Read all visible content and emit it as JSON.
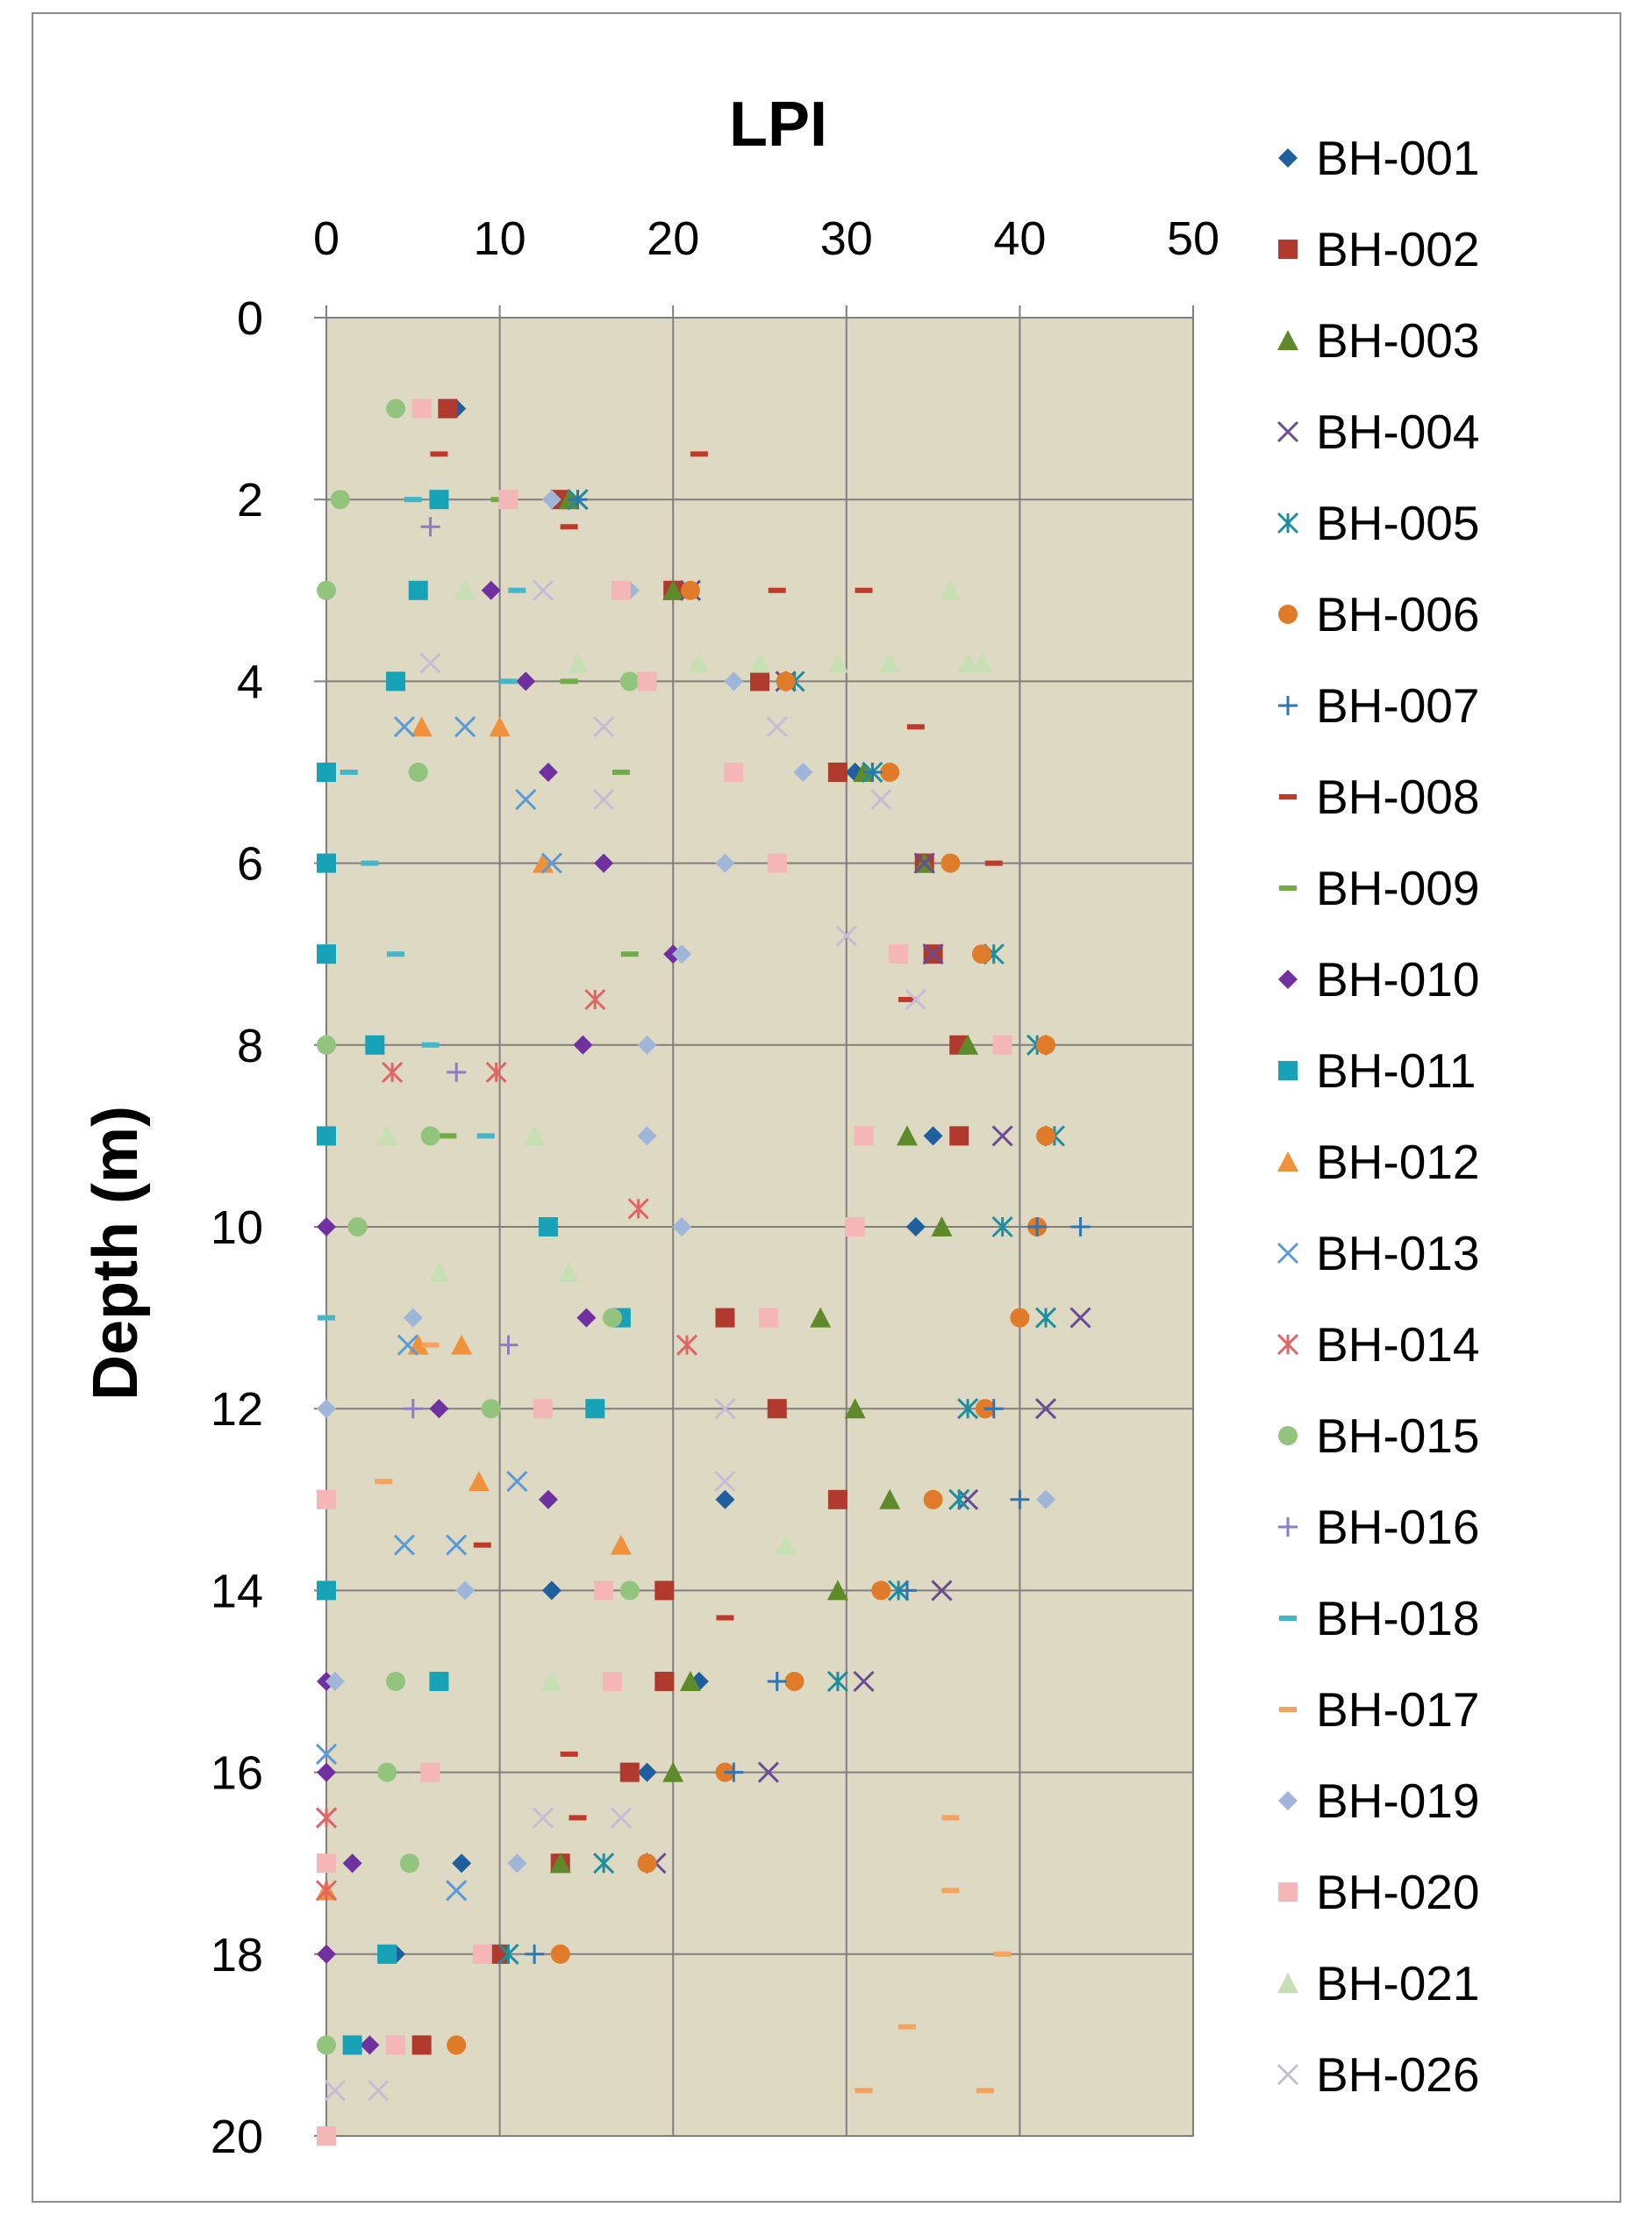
{
  "chart_data": {
    "type": "scatter",
    "title": "LPI",
    "xlabel": "LPI",
    "ylabel": "Depth (m)",
    "xlim": [
      0,
      50
    ],
    "ylim": [
      0,
      20
    ],
    "y_inverted": true,
    "x_axis_position": "top",
    "x_ticks": [
      0,
      10,
      20,
      30,
      40,
      50
    ],
    "y_ticks": [
      0,
      2,
      4,
      6,
      8,
      10,
      12,
      14,
      16,
      18,
      20
    ],
    "x_tick_labels": [
      "0",
      "10",
      "20",
      "30",
      "40",
      "50"
    ],
    "y_tick_labels": [
      "0",
      "2",
      "4",
      "6",
      "8",
      "10",
      "12",
      "14",
      "16",
      "18",
      "20"
    ],
    "grid": true,
    "plot_background": "#ddd9c3",
    "legend_position": "right",
    "series": [
      {
        "name": "BH-001",
        "marker": "diamond",
        "color": "#1f5f9e",
        "points": [
          [
            7.5,
            1
          ],
          [
            14,
            2
          ],
          [
            20.5,
            3
          ],
          [
            26.5,
            4
          ],
          [
            30.5,
            5
          ],
          [
            34.5,
            6
          ],
          [
            35,
            7
          ],
          [
            36.5,
            8
          ],
          [
            35,
            9
          ],
          [
            34,
            10
          ],
          [
            23,
            13
          ],
          [
            13,
            14
          ],
          [
            21.5,
            15
          ],
          [
            18.5,
            16
          ],
          [
            7.8,
            17
          ],
          [
            4,
            18
          ],
          [
            5.5,
            19
          ]
        ]
      },
      {
        "name": "BH-002",
        "marker": "square",
        "color": "#b03a2e",
        "points": [
          [
            7,
            1
          ],
          [
            13.5,
            2
          ],
          [
            20,
            3
          ],
          [
            25,
            4
          ],
          [
            29.5,
            5
          ],
          [
            34.5,
            6
          ],
          [
            35,
            7
          ],
          [
            36.5,
            8
          ],
          [
            36.5,
            9
          ],
          [
            23,
            11
          ],
          [
            26,
            12
          ],
          [
            29.5,
            13
          ],
          [
            19.5,
            14
          ],
          [
            19.5,
            15
          ],
          [
            17.5,
            16
          ],
          [
            13.5,
            17
          ],
          [
            10,
            18
          ],
          [
            5.5,
            19
          ]
        ]
      },
      {
        "name": "BH-003",
        "marker": "triangle",
        "color": "#5f8a2a",
        "points": [
          [
            14,
            2
          ],
          [
            20,
            3
          ],
          [
            31,
            5
          ],
          [
            34.5,
            6
          ],
          [
            37,
            8
          ],
          [
            33.5,
            9
          ],
          [
            35.5,
            10
          ],
          [
            28.5,
            11
          ],
          [
            30.5,
            12
          ],
          [
            32.5,
            13
          ],
          [
            29.5,
            14
          ],
          [
            21,
            15
          ],
          [
            20,
            16
          ],
          [
            13.5,
            17
          ]
        ]
      },
      {
        "name": "BH-004",
        "marker": "x",
        "color": "#6a4c93",
        "points": [
          [
            14.5,
            2
          ],
          [
            21,
            3
          ],
          [
            26.5,
            4
          ],
          [
            34.5,
            6
          ],
          [
            35,
            7
          ],
          [
            39,
            9
          ],
          [
            43.5,
            11
          ],
          [
            41.5,
            12
          ],
          [
            37,
            13
          ],
          [
            35.5,
            14
          ],
          [
            31,
            15
          ],
          [
            25.5,
            16
          ],
          [
            19,
            17
          ]
        ]
      },
      {
        "name": "BH-005",
        "marker": "asterisk",
        "color": "#1b8fa0",
        "points": [
          [
            14.5,
            2
          ],
          [
            27,
            4
          ],
          [
            31.5,
            5
          ],
          [
            38.5,
            7
          ],
          [
            41,
            8
          ],
          [
            42,
            9
          ],
          [
            39,
            10
          ],
          [
            41.5,
            11
          ],
          [
            37,
            12
          ],
          [
            36.5,
            13
          ],
          [
            33,
            14
          ],
          [
            29.5,
            15
          ],
          [
            16,
            17
          ],
          [
            10.5,
            18
          ]
        ]
      },
      {
        "name": "BH-006",
        "marker": "circle",
        "color": "#e07b2a",
        "points": [
          [
            21,
            3
          ],
          [
            26.5,
            4
          ],
          [
            32.5,
            5
          ],
          [
            36,
            6
          ],
          [
            37.8,
            7
          ],
          [
            41.5,
            8
          ],
          [
            41.5,
            9
          ],
          [
            41,
            10
          ],
          [
            40,
            11
          ],
          [
            38,
            12
          ],
          [
            35,
            13
          ],
          [
            32,
            14
          ],
          [
            27,
            15
          ],
          [
            23,
            16
          ],
          [
            18.5,
            17
          ],
          [
            13.5,
            18
          ],
          [
            7.5,
            19
          ]
        ]
      },
      {
        "name": "BH-007",
        "marker": "plus",
        "color": "#2e75b6",
        "points": [
          [
            14.5,
            2
          ],
          [
            31.5,
            5
          ],
          [
            41,
            10
          ],
          [
            43.5,
            10
          ],
          [
            38.5,
            12
          ],
          [
            40,
            13
          ],
          [
            33.5,
            14
          ],
          [
            26,
            15
          ],
          [
            23.5,
            16
          ],
          [
            12,
            18
          ]
        ]
      },
      {
        "name": "BH-008",
        "marker": "dash",
        "color": "#c0392b",
        "points": [
          [
            6.5,
            1.5
          ],
          [
            21.5,
            1.5
          ],
          [
            14,
            2.3
          ],
          [
            26,
            3
          ],
          [
            31,
            3
          ],
          [
            34,
            4.5
          ],
          [
            38.5,
            6
          ],
          [
            33.5,
            7.5
          ],
          [
            9,
            13.5
          ],
          [
            23,
            14.3
          ],
          [
            14,
            15.8
          ],
          [
            14.5,
            16.5
          ]
        ]
      },
      {
        "name": "BH-009",
        "marker": "dash",
        "color": "#70ad47",
        "points": [
          [
            10,
            2
          ],
          [
            14,
            4
          ],
          [
            17,
            5
          ],
          [
            17.5,
            7
          ],
          [
            7,
            9
          ]
        ]
      },
      {
        "name": "BH-010",
        "marker": "diamond",
        "color": "#7030a0",
        "points": [
          [
            9.5,
            3
          ],
          [
            11.5,
            4
          ],
          [
            12.8,
            5
          ],
          [
            16,
            6
          ],
          [
            20,
            7
          ],
          [
            14.8,
            8
          ],
          [
            0,
            10
          ],
          [
            15,
            11
          ],
          [
            6.5,
            12
          ],
          [
            12.8,
            13
          ],
          [
            0,
            15
          ],
          [
            0,
            16
          ],
          [
            1.5,
            17
          ],
          [
            0,
            18
          ],
          [
            2.5,
            19
          ]
        ]
      },
      {
        "name": "BH-011",
        "marker": "square",
        "color": "#17a2b8",
        "points": [
          [
            6.5,
            2
          ],
          [
            5.3,
            3
          ],
          [
            4,
            4
          ],
          [
            0,
            5
          ],
          [
            0,
            6
          ],
          [
            0,
            7
          ],
          [
            2.8,
            8
          ],
          [
            0,
            9
          ],
          [
            12.8,
            10
          ],
          [
            17,
            11
          ],
          [
            15.5,
            12
          ],
          [
            0,
            14
          ],
          [
            6.5,
            15
          ],
          [
            3.5,
            18
          ],
          [
            1.5,
            19
          ]
        ]
      },
      {
        "name": "BH-012",
        "marker": "triangle",
        "color": "#f0923c",
        "points": [
          [
            5.5,
            4.5
          ],
          [
            10,
            4.5
          ],
          [
            12.5,
            6
          ],
          [
            5.3,
            11.3
          ],
          [
            7.8,
            11.3
          ],
          [
            8.8,
            12.8
          ],
          [
            17,
            13.5
          ],
          [
            0,
            17.3
          ]
        ]
      },
      {
        "name": "BH-013",
        "marker": "x",
        "color": "#5b9bd5",
        "points": [
          [
            4.5,
            4.5
          ],
          [
            8,
            4.5
          ],
          [
            11.5,
            5.3
          ],
          [
            13,
            6
          ],
          [
            4.7,
            11.3
          ],
          [
            11,
            12.8
          ],
          [
            4.5,
            13.5
          ],
          [
            7.5,
            13.5
          ],
          [
            0,
            15.8
          ],
          [
            0,
            16.5
          ],
          [
            7.5,
            17.3
          ]
        ]
      },
      {
        "name": "BH-014",
        "marker": "asterisk",
        "color": "#e06666",
        "points": [
          [
            15.5,
            7.5
          ],
          [
            3.8,
            8.3
          ],
          [
            9.8,
            8.3
          ],
          [
            18,
            9.8
          ],
          [
            20.8,
            11.3
          ],
          [
            0,
            16.5
          ],
          [
            0,
            17.3
          ]
        ]
      },
      {
        "name": "BH-015",
        "marker": "circle",
        "color": "#93c47d",
        "points": [
          [
            4,
            1
          ],
          [
            0.8,
            2
          ],
          [
            0,
            3
          ],
          [
            17.5,
            4
          ],
          [
            5.3,
            5
          ],
          [
            0,
            8
          ],
          [
            6,
            9
          ],
          [
            1.8,
            10
          ],
          [
            16.5,
            11
          ],
          [
            9.5,
            12
          ],
          [
            17.5,
            14
          ],
          [
            4,
            15
          ],
          [
            3.5,
            16
          ],
          [
            4.8,
            17
          ],
          [
            0,
            19
          ]
        ]
      },
      {
        "name": "BH-016",
        "marker": "plus",
        "color": "#8e7cc3",
        "points": [
          [
            6,
            2.3
          ],
          [
            7.5,
            8.3
          ],
          [
            10.5,
            11.3
          ],
          [
            5,
            12
          ]
        ]
      },
      {
        "name": "BH-018",
        "marker": "dash",
        "color": "#45b5c9",
        "points": [
          [
            5,
            2
          ],
          [
            11,
            3
          ],
          [
            10.5,
            4
          ],
          [
            1.3,
            5
          ],
          [
            2.5,
            6
          ],
          [
            4,
            7
          ],
          [
            6,
            8
          ],
          [
            9.2,
            9
          ],
          [
            0,
            11
          ]
        ]
      },
      {
        "name": "BH-017",
        "marker": "dash",
        "color": "#f4a460",
        "points": [
          [
            3.3,
            12.8
          ],
          [
            6,
            11.3
          ],
          [
            36,
            16.5
          ],
          [
            36,
            17.3
          ],
          [
            39,
            18
          ],
          [
            33.5,
            18.8
          ],
          [
            31,
            19.5
          ],
          [
            38,
            19.5
          ]
        ]
      },
      {
        "name": "BH-019",
        "marker": "diamond",
        "color": "#9fb6d8",
        "points": [
          [
            13,
            2
          ],
          [
            17.5,
            3
          ],
          [
            23.5,
            4
          ],
          [
            27.5,
            5
          ],
          [
            23,
            6
          ],
          [
            20.5,
            7
          ],
          [
            18.5,
            8
          ],
          [
            18.5,
            9
          ],
          [
            20.5,
            10
          ],
          [
            5,
            11
          ],
          [
            0,
            12
          ],
          [
            41.5,
            13
          ],
          [
            8,
            14
          ],
          [
            0.5,
            15
          ],
          [
            11,
            17
          ]
        ]
      },
      {
        "name": "BH-020",
        "marker": "square",
        "color": "#f4b6b6",
        "points": [
          [
            5.5,
            1
          ],
          [
            10.5,
            2
          ],
          [
            17,
            3
          ],
          [
            18.5,
            4
          ],
          [
            23.5,
            5
          ],
          [
            26,
            6
          ],
          [
            33,
            7
          ],
          [
            39,
            8
          ],
          [
            31,
            9
          ],
          [
            30.5,
            10
          ],
          [
            25.5,
            11
          ],
          [
            12.5,
            12
          ],
          [
            0,
            13
          ],
          [
            16,
            14
          ],
          [
            16.5,
            15
          ],
          [
            6,
            16
          ],
          [
            0,
            17
          ],
          [
            9,
            18
          ],
          [
            4,
            19
          ],
          [
            0,
            20
          ]
        ]
      },
      {
        "name": "BH-021",
        "marker": "triangle",
        "color": "#c6e0b4",
        "points": [
          [
            8,
            3
          ],
          [
            36,
            3
          ],
          [
            14.5,
            3.8
          ],
          [
            21.5,
            3.8
          ],
          [
            25,
            3.8
          ],
          [
            29.5,
            3.8
          ],
          [
            32.5,
            3.8
          ],
          [
            37,
            3.8
          ],
          [
            37.8,
            3.8
          ],
          [
            3.5,
            9
          ],
          [
            12,
            9
          ],
          [
            6.5,
            10.5
          ],
          [
            14,
            10.5
          ],
          [
            26.5,
            13.5
          ],
          [
            13,
            15
          ]
        ]
      },
      {
        "name": "BH-026",
        "marker": "x",
        "color": "#c3bed6",
        "points": [
          [
            12.5,
            3
          ],
          [
            6,
            3.8
          ],
          [
            16,
            4.5
          ],
          [
            26,
            4.5
          ],
          [
            16,
            5.3
          ],
          [
            32,
            5.3
          ],
          [
            30,
            6.8
          ],
          [
            34,
            7.5
          ],
          [
            23,
            12
          ],
          [
            23,
            12.8
          ],
          [
            12.5,
            16.5
          ],
          [
            17,
            16.5
          ],
          [
            0.5,
            19.5
          ],
          [
            3,
            19.5
          ]
        ]
      }
    ]
  }
}
